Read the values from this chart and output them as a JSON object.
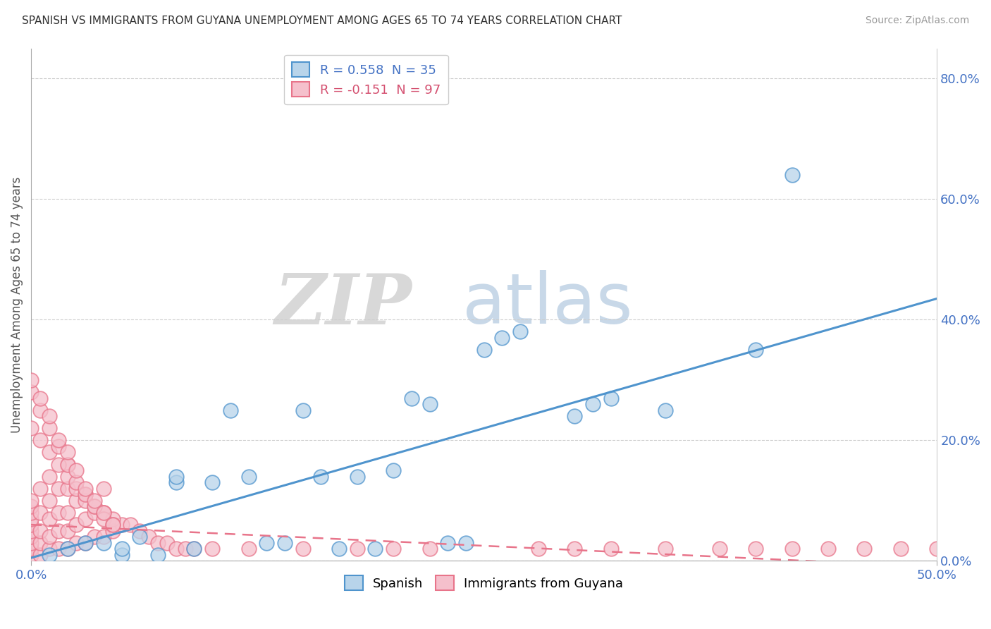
{
  "title": "SPANISH VS IMMIGRANTS FROM GUYANA UNEMPLOYMENT AMONG AGES 65 TO 74 YEARS CORRELATION CHART",
  "source": "Source: ZipAtlas.com",
  "ylabel": "Unemployment Among Ages 65 to 74 years",
  "ylabel_right_labels": [
    "0.0%",
    "20.0%",
    "40.0%",
    "60.0%",
    "80.0%"
  ],
  "ylabel_right_values": [
    0.0,
    0.2,
    0.4,
    0.6,
    0.8
  ],
  "xlim": [
    0.0,
    0.5
  ],
  "ylim": [
    0.0,
    0.85
  ],
  "legend_label1": "R = 0.558  N = 35",
  "legend_label2": "R = -0.151  N = 97",
  "spanish_scatter_x": [
    0.01,
    0.02,
    0.03,
    0.04,
    0.05,
    0.05,
    0.06,
    0.07,
    0.08,
    0.08,
    0.09,
    0.1,
    0.11,
    0.12,
    0.13,
    0.14,
    0.15,
    0.16,
    0.17,
    0.18,
    0.19,
    0.2,
    0.21,
    0.22,
    0.23,
    0.24,
    0.25,
    0.26,
    0.27,
    0.3,
    0.31,
    0.32,
    0.35,
    0.4,
    0.42
  ],
  "spanish_scatter_y": [
    0.01,
    0.02,
    0.03,
    0.03,
    0.01,
    0.02,
    0.04,
    0.01,
    0.13,
    0.14,
    0.02,
    0.13,
    0.25,
    0.14,
    0.03,
    0.03,
    0.25,
    0.14,
    0.02,
    0.14,
    0.02,
    0.15,
    0.27,
    0.26,
    0.03,
    0.03,
    0.35,
    0.37,
    0.38,
    0.24,
    0.26,
    0.27,
    0.25,
    0.35,
    0.64
  ],
  "guyana_scatter_x": [
    0.0,
    0.0,
    0.0,
    0.0,
    0.0,
    0.0,
    0.0,
    0.0,
    0.0,
    0.0,
    0.005,
    0.005,
    0.005,
    0.005,
    0.005,
    0.01,
    0.01,
    0.01,
    0.01,
    0.01,
    0.015,
    0.015,
    0.015,
    0.015,
    0.02,
    0.02,
    0.02,
    0.02,
    0.02,
    0.025,
    0.025,
    0.025,
    0.03,
    0.03,
    0.03,
    0.035,
    0.035,
    0.04,
    0.04,
    0.04,
    0.045,
    0.05,
    0.055,
    0.06,
    0.065,
    0.07,
    0.075,
    0.08,
    0.085,
    0.09,
    0.0,
    0.005,
    0.01,
    0.015,
    0.02,
    0.025,
    0.03,
    0.035,
    0.04,
    0.045,
    0.0,
    0.005,
    0.01,
    0.015,
    0.02,
    0.025,
    0.03,
    0.035,
    0.04,
    0.045,
    0.0,
    0.005,
    0.01,
    0.015,
    0.02,
    0.025,
    0.03,
    0.035,
    0.04,
    0.045,
    0.1,
    0.12,
    0.15,
    0.18,
    0.2,
    0.22,
    0.28,
    0.3,
    0.32,
    0.35,
    0.38,
    0.4,
    0.42,
    0.44,
    0.46,
    0.48,
    0.5
  ],
  "guyana_scatter_y": [
    0.01,
    0.02,
    0.03,
    0.04,
    0.05,
    0.06,
    0.07,
    0.08,
    0.09,
    0.1,
    0.01,
    0.03,
    0.05,
    0.08,
    0.12,
    0.02,
    0.04,
    0.07,
    0.1,
    0.14,
    0.02,
    0.05,
    0.08,
    0.12,
    0.02,
    0.05,
    0.08,
    0.12,
    0.16,
    0.03,
    0.06,
    0.1,
    0.03,
    0.07,
    0.11,
    0.04,
    0.08,
    0.04,
    0.08,
    0.12,
    0.05,
    0.06,
    0.06,
    0.05,
    0.04,
    0.03,
    0.03,
    0.02,
    0.02,
    0.02,
    0.22,
    0.2,
    0.18,
    0.16,
    0.14,
    0.12,
    0.1,
    0.09,
    0.08,
    0.07,
    0.28,
    0.25,
    0.22,
    0.19,
    0.16,
    0.13,
    0.11,
    0.09,
    0.07,
    0.06,
    0.3,
    0.27,
    0.24,
    0.2,
    0.18,
    0.15,
    0.12,
    0.1,
    0.08,
    0.06,
    0.02,
    0.02,
    0.02,
    0.02,
    0.02,
    0.02,
    0.02,
    0.02,
    0.02,
    0.02,
    0.02,
    0.02,
    0.02,
    0.02,
    0.02,
    0.02,
    0.02
  ],
  "spanish_line_x": [
    0.0,
    0.5
  ],
  "spanish_line_y": [
    0.005,
    0.435
  ],
  "guyana_line_x": [
    0.0,
    0.5
  ],
  "guyana_line_y": [
    0.06,
    -0.01
  ],
  "spanish_color": "#4f94cd",
  "guyana_color": "#e8748a",
  "spanish_fill_color": "#b8d4ea",
  "guyana_fill_color": "#f5c0cc",
  "watermark_zip": "ZIP",
  "watermark_atlas": "atlas",
  "bg_color": "#ffffff",
  "grid_color": "#cccccc"
}
